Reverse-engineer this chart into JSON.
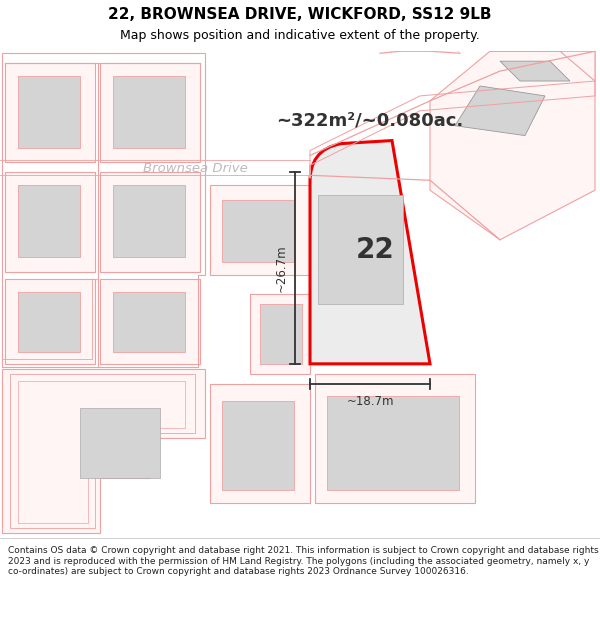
{
  "title": "22, BROWNSEA DRIVE, WICKFORD, SS12 9LB",
  "subtitle": "Map shows position and indicative extent of the property.",
  "footer": "Contains OS data © Crown copyright and database right 2021. This information is subject to Crown copyright and database rights 2023 and is reproduced with the permission of HM Land Registry. The polygons (including the associated geometry, namely x, y co-ordinates) are subject to Crown copyright and database rights 2023 Ordnance Survey 100026316.",
  "area_text": "~322m²/~0.080ac.",
  "road_label": "Brownsea Drive",
  "plot_number": "22",
  "dim_width": "~18.7m",
  "dim_height": "~26.7m",
  "bg_color": "#ffffff",
  "map_bg": "#ffffff",
  "plot_fill": "#ececec",
  "building_fill": "#d4d4d4",
  "red_line": "#ee0000",
  "pink_line": "#f0a0a0",
  "pink_fill": "#fff5f5",
  "dark_color": "#333333",
  "road_label_color": "#bbbbbb",
  "title_fontsize": 11,
  "subtitle_fontsize": 9,
  "footer_fontsize": 6.5
}
